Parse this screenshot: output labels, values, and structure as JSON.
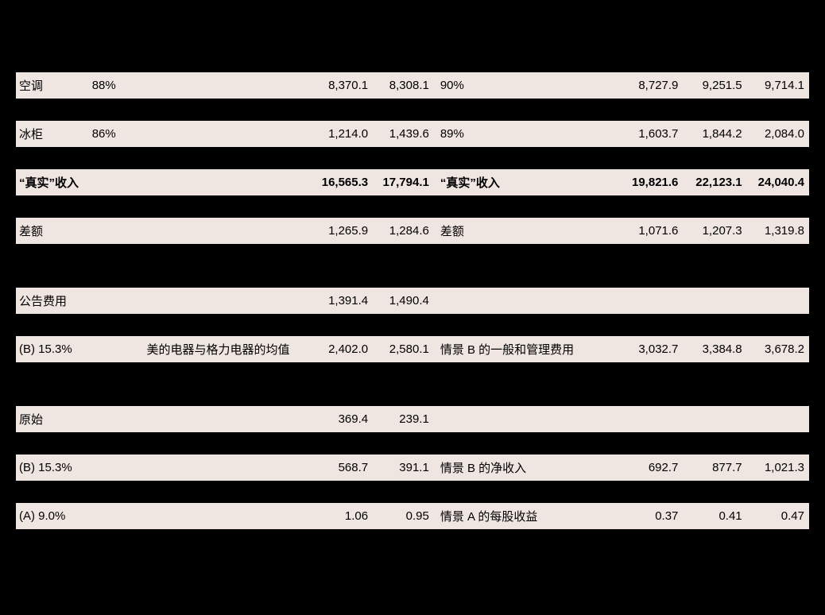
{
  "colors": {
    "background": "#000000",
    "shaded_row": "#efe6e1",
    "shaded_text": "#000000",
    "plain_text": "#ffffff",
    "border": "#000000"
  },
  "typography": {
    "base_fontsize": 15,
    "font_family": "SimSun"
  },
  "table": {
    "type": "table",
    "rows": [
      {
        "style": "shaded",
        "bold": false,
        "cells": {
          "label": "空调",
          "pct": "88%",
          "note": "",
          "v1": "8,370.1",
          "v2": "8,308.1",
          "label2": "90%",
          "v3": "8,727.9",
          "v4": "9,251.5",
          "v5": "9,714.1"
        }
      },
      {
        "style": "shaded",
        "bold": false,
        "cells": {
          "label": "冰柜",
          "pct": "86%",
          "note": "",
          "v1": "1,214.0",
          "v2": "1,439.6",
          "label2": "89%",
          "v3": "1,603.7",
          "v4": "1,844.2",
          "v5": "2,084.0"
        }
      },
      {
        "style": "shaded",
        "bold": true,
        "cells": {
          "label": "“真实”收入",
          "pct": "",
          "note": "",
          "v1": "16,565.3",
          "v2": "17,794.1",
          "label2": "“真实”收入",
          "v3": "19,821.6",
          "v4": "22,123.1",
          "v5": "24,040.4"
        }
      },
      {
        "style": "shaded",
        "bold": false,
        "cells": {
          "label": "差额",
          "pct": "",
          "note": "",
          "v1": "1,265.9",
          "v2": "1,284.6",
          "label2": "差额",
          "v3": "1,071.6",
          "v4": "1,207.3",
          "v5": "1,319.8"
        }
      },
      {
        "style": "shaded",
        "bold": false,
        "cells": {
          "label": "公告费用",
          "pct": "",
          "note": "",
          "v1": "1,391.4",
          "v2": "1,490.4",
          "label2": "",
          "v3": "",
          "v4": "",
          "v5": ""
        }
      },
      {
        "style": "shaded",
        "bold": false,
        "cells": {
          "label": "(B) 15.3%",
          "pct": "",
          "note": "美的电器与格力电器的均值",
          "v1": "2,402.0",
          "v2": "2,580.1",
          "label2": "情景 B 的一般和管理费用",
          "v3": "3,032.7",
          "v4": "3,384.8",
          "v5": "3,678.2"
        }
      },
      {
        "style": "shaded",
        "bold": false,
        "cells": {
          "label": "原始",
          "pct": "",
          "note": "",
          "v1": "369.4",
          "v2": "239.1",
          "label2": "",
          "v3": "",
          "v4": "",
          "v5": ""
        }
      },
      {
        "style": "shaded",
        "bold": false,
        "cells": {
          "label": "(B) 15.3%",
          "pct": "",
          "note": "",
          "v1": "568.7",
          "v2": "391.1",
          "label2": "情景 B 的净收入",
          "v3": "692.7",
          "v4": "877.7",
          "v5": "1,021.3"
        }
      },
      {
        "style": "shaded",
        "bold": false,
        "cells": {
          "label": "(A) 9.0%",
          "pct": "",
          "note": "",
          "v1": "1.06",
          "v2": "0.95",
          "label2": "情景 A 的每股收益",
          "v3": "0.37",
          "v4": "0.41",
          "v5": "0.47"
        }
      }
    ],
    "layout": {
      "spacing_after_row": [
        0,
        1,
        2,
        3,
        4,
        5,
        6,
        7
      ],
      "big_spacing_after": [
        3,
        5
      ]
    }
  }
}
